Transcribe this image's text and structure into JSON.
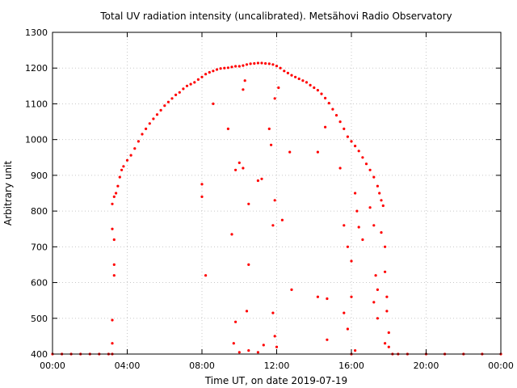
{
  "chart_data": {
    "type": "scatter",
    "title": "Total UV radiation intensity (uncalibrated). Metsähovi Radio Observatory",
    "xlabel": "Time UT, on date 2019-07-19",
    "ylabel": "Arbitrary unit",
    "x_unit": "hour",
    "xlim": [
      0,
      24
    ],
    "ylim": [
      400,
      1300
    ],
    "x_ticks": [
      0,
      4,
      8,
      12,
      16,
      20,
      24
    ],
    "x_tick_labels": [
      "00:00",
      "04:00",
      "08:00",
      "12:00",
      "16:00",
      "20:00",
      "00:00"
    ],
    "y_ticks": [
      400,
      500,
      600,
      700,
      800,
      900,
      1000,
      1100,
      1200,
      1300
    ],
    "y_tick_labels": [
      "400",
      "500",
      "600",
      "700",
      "800",
      "900",
      "1000",
      "1100",
      "1200",
      "1300"
    ],
    "grid": true,
    "point_color": "#ff0000",
    "series": [
      {
        "points": [
          [
            0.0,
            400
          ],
          [
            0.5,
            400
          ],
          [
            1.0,
            400
          ],
          [
            1.5,
            400
          ],
          [
            2.0,
            400
          ],
          [
            2.5,
            400
          ],
          [
            3.0,
            400
          ],
          [
            3.2,
            400
          ],
          [
            3.3,
            840
          ],
          [
            3.4,
            850
          ],
          [
            3.5,
            870
          ],
          [
            3.6,
            895
          ],
          [
            3.7,
            915
          ],
          [
            3.8,
            925
          ],
          [
            4.0,
            942
          ],
          [
            4.2,
            956
          ],
          [
            4.4,
            975
          ],
          [
            4.6,
            995
          ],
          [
            4.8,
            1015
          ],
          [
            5.0,
            1030
          ],
          [
            5.2,
            1045
          ],
          [
            5.4,
            1058
          ],
          [
            5.6,
            1070
          ],
          [
            5.8,
            1082
          ],
          [
            6.0,
            1095
          ],
          [
            6.2,
            1105
          ],
          [
            6.4,
            1115
          ],
          [
            6.6,
            1125
          ],
          [
            6.8,
            1132
          ],
          [
            7.0,
            1142
          ],
          [
            7.2,
            1150
          ],
          [
            7.4,
            1155
          ],
          [
            7.6,
            1160
          ],
          [
            7.8,
            1168
          ],
          [
            8.0,
            1175
          ],
          [
            8.2,
            1183
          ],
          [
            8.4,
            1188
          ],
          [
            8.6,
            1192
          ],
          [
            8.8,
            1196
          ],
          [
            9.0,
            1199
          ],
          [
            9.2,
            1200
          ],
          [
            9.4,
            1201
          ],
          [
            9.6,
            1203
          ],
          [
            9.8,
            1205
          ],
          [
            10.0,
            1205
          ],
          [
            10.2,
            1207
          ],
          [
            10.4,
            1210
          ],
          [
            10.6,
            1212
          ],
          [
            10.8,
            1213
          ],
          [
            11.0,
            1214
          ],
          [
            11.2,
            1214
          ],
          [
            11.4,
            1213
          ],
          [
            11.6,
            1212
          ],
          [
            11.8,
            1210
          ],
          [
            12.0,
            1206
          ],
          [
            12.2,
            1200
          ],
          [
            12.4,
            1192
          ],
          [
            12.6,
            1186
          ],
          [
            12.8,
            1180
          ],
          [
            13.0,
            1175
          ],
          [
            13.2,
            1170
          ],
          [
            13.4,
            1165
          ],
          [
            13.6,
            1160
          ],
          [
            13.8,
            1152
          ],
          [
            14.0,
            1145
          ],
          [
            14.2,
            1138
          ],
          [
            14.4,
            1128
          ],
          [
            14.6,
            1116
          ],
          [
            14.8,
            1102
          ],
          [
            15.0,
            1085
          ],
          [
            15.2,
            1068
          ],
          [
            15.4,
            1050
          ],
          [
            15.6,
            1030
          ],
          [
            15.8,
            1008
          ],
          [
            16.0,
            995
          ],
          [
            16.2,
            982
          ],
          [
            16.4,
            968
          ],
          [
            16.6,
            950
          ],
          [
            16.8,
            932
          ],
          [
            17.0,
            915
          ],
          [
            17.2,
            895
          ],
          [
            17.4,
            870
          ],
          [
            17.5,
            850
          ],
          [
            17.6,
            830
          ],
          [
            17.7,
            815
          ],
          [
            17.8,
            700
          ],
          [
            17.9,
            560
          ],
          [
            18.0,
            460
          ],
          [
            18.2,
            400
          ],
          [
            18.5,
            400
          ],
          [
            19.0,
            400
          ],
          [
            20.0,
            400
          ],
          [
            21.0,
            400
          ],
          [
            22.0,
            400
          ],
          [
            23.0,
            400
          ],
          [
            24.0,
            400
          ],
          [
            3.2,
            820
          ],
          [
            3.2,
            750
          ],
          [
            3.3,
            720
          ],
          [
            3.3,
            650
          ],
          [
            3.3,
            620
          ],
          [
            3.2,
            495
          ],
          [
            3.2,
            430
          ],
          [
            8.0,
            875
          ],
          [
            8.0,
            840
          ],
          [
            8.2,
            620
          ],
          [
            8.6,
            1100
          ],
          [
            9.4,
            1030
          ],
          [
            9.6,
            735
          ],
          [
            9.8,
            915
          ],
          [
            10.0,
            935
          ],
          [
            10.2,
            920
          ],
          [
            10.2,
            1140
          ],
          [
            10.3,
            1165
          ],
          [
            10.5,
            820
          ],
          [
            10.5,
            650
          ],
          [
            10.4,
            520
          ],
          [
            9.8,
            490
          ],
          [
            9.7,
            430
          ],
          [
            10.0,
            405
          ],
          [
            10.5,
            410
          ],
          [
            11.0,
            885
          ],
          [
            11.2,
            890
          ],
          [
            11.6,
            1030
          ],
          [
            11.7,
            985
          ],
          [
            11.8,
            760
          ],
          [
            11.9,
            830
          ],
          [
            11.9,
            1115
          ],
          [
            12.1,
            1145
          ],
          [
            12.3,
            775
          ],
          [
            11.8,
            515
          ],
          [
            11.9,
            450
          ],
          [
            12.0,
            420
          ],
          [
            11.3,
            425
          ],
          [
            11.0,
            405
          ],
          [
            12.7,
            965
          ],
          [
            12.8,
            580
          ],
          [
            14.2,
            965
          ],
          [
            14.2,
            560
          ],
          [
            14.6,
            1035
          ],
          [
            14.7,
            555
          ],
          [
            14.7,
            440
          ],
          [
            15.4,
            920
          ],
          [
            15.6,
            760
          ],
          [
            15.8,
            700
          ],
          [
            16.0,
            660
          ],
          [
            16.0,
            560
          ],
          [
            15.6,
            515
          ],
          [
            15.8,
            470
          ],
          [
            16.2,
            850
          ],
          [
            16.3,
            800
          ],
          [
            16.4,
            755
          ],
          [
            16.2,
            410
          ],
          [
            16.0,
            400
          ],
          [
            16.6,
            720
          ],
          [
            17.0,
            810
          ],
          [
            17.2,
            760
          ],
          [
            17.3,
            620
          ],
          [
            17.4,
            580
          ],
          [
            17.2,
            545
          ],
          [
            17.4,
            500
          ],
          [
            17.6,
            740
          ],
          [
            17.8,
            630
          ],
          [
            17.9,
            520
          ],
          [
            17.8,
            430
          ],
          [
            18.0,
            420
          ]
        ]
      }
    ]
  }
}
